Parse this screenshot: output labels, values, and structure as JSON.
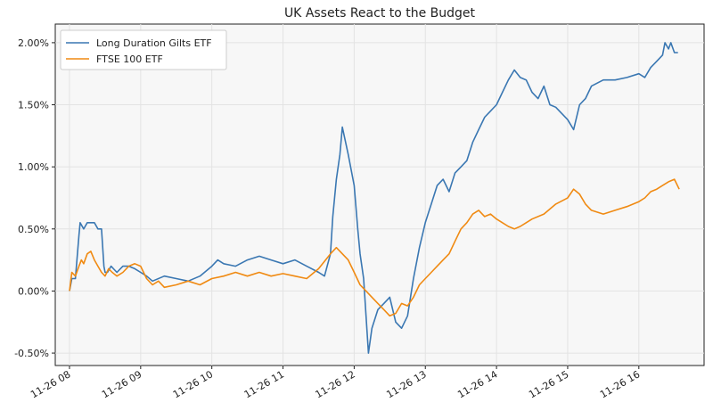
{
  "chart_data": {
    "type": "line",
    "title": "UK Assets React to the Budget",
    "xlabel": "",
    "ylabel": "",
    "x_ticks": [
      "11-26 08",
      "11-26 09",
      "11-26 10",
      "11-26 11",
      "11-26 12",
      "11-26 13",
      "11-26 14",
      "11-26 15",
      "11-26 16"
    ],
    "y_ticks": [
      "-0.50%",
      "0.00%",
      "0.50%",
      "1.00%",
      "1.50%",
      "2.00%"
    ],
    "ylim": [
      -0.6,
      2.15
    ],
    "xlim": [
      "11-26 07:48",
      "11-26 16:55"
    ],
    "grid": true,
    "legend_position": "top-left",
    "background_color": "#f7f7f7",
    "series": [
      {
        "name": "Long Duration Gilts ETF",
        "color": "#3a77b2",
        "x": [
          "08:00",
          "08:02",
          "08:05",
          "08:08",
          "08:09",
          "08:12",
          "08:15",
          "08:18",
          "08:21",
          "08:24",
          "08:27",
          "08:29",
          "08:30",
          "08:32",
          "08:35",
          "08:40",
          "08:45",
          "08:50",
          "08:55",
          "09:00",
          "09:05",
          "09:10",
          "09:20",
          "09:30",
          "09:40",
          "09:50",
          "10:00",
          "10:05",
          "10:10",
          "10:20",
          "10:30",
          "10:40",
          "10:50",
          "11:00",
          "11:10",
          "11:20",
          "11:30",
          "11:35",
          "11:40",
          "11:42",
          "11:45",
          "11:48",
          "11:50",
          "11:55",
          "12:00",
          "12:03",
          "12:05",
          "12:08",
          "12:10",
          "12:12",
          "12:15",
          "12:20",
          "12:25",
          "12:30",
          "12:35",
          "12:40",
          "12:45",
          "12:50",
          "12:55",
          "13:00",
          "13:05",
          "13:10",
          "13:15",
          "13:20",
          "13:25",
          "13:30",
          "13:35",
          "13:40",
          "13:45",
          "13:50",
          "14:00",
          "14:05",
          "14:10",
          "14:15",
          "14:20",
          "14:25",
          "14:30",
          "14:35",
          "14:40",
          "14:45",
          "14:50",
          "15:00",
          "15:05",
          "15:10",
          "15:15",
          "15:20",
          "15:30",
          "15:40",
          "15:50",
          "16:00",
          "16:05",
          "16:10",
          "16:15",
          "16:20",
          "16:22",
          "16:25",
          "16:27",
          "16:30",
          "16:33"
        ],
        "values": [
          0.0,
          0.1,
          0.1,
          0.45,
          0.55,
          0.5,
          0.55,
          0.55,
          0.55,
          0.5,
          0.5,
          0.2,
          0.15,
          0.15,
          0.2,
          0.15,
          0.2,
          0.2,
          0.18,
          0.15,
          0.12,
          0.08,
          0.12,
          0.1,
          0.08,
          0.12,
          0.2,
          0.25,
          0.22,
          0.2,
          0.25,
          0.28,
          0.25,
          0.22,
          0.25,
          0.2,
          0.15,
          0.12,
          0.3,
          0.6,
          0.9,
          1.1,
          1.32,
          1.1,
          0.85,
          0.5,
          0.3,
          0.1,
          -0.2,
          -0.5,
          -0.3,
          -0.15,
          -0.1,
          -0.05,
          -0.25,
          -0.3,
          -0.2,
          0.1,
          0.35,
          0.55,
          0.7,
          0.85,
          0.9,
          0.8,
          0.95,
          1.0,
          1.05,
          1.2,
          1.3,
          1.4,
          1.5,
          1.6,
          1.7,
          1.78,
          1.72,
          1.7,
          1.6,
          1.55,
          1.65,
          1.5,
          1.48,
          1.38,
          1.3,
          1.5,
          1.55,
          1.65,
          1.7,
          1.7,
          1.72,
          1.75,
          1.72,
          1.8,
          1.85,
          1.9,
          2.0,
          1.95,
          2.0,
          1.92,
          1.92
        ]
      },
      {
        "name": "FTSE 100 ETF",
        "color": "#f08a12",
        "x": [
          "08:00",
          "08:02",
          "08:05",
          "08:08",
          "08:10",
          "08:12",
          "08:15",
          "08:18",
          "08:21",
          "08:24",
          "08:27",
          "08:30",
          "08:33",
          "08:36",
          "08:40",
          "08:45",
          "08:50",
          "08:55",
          "09:00",
          "09:05",
          "09:10",
          "09:15",
          "09:20",
          "09:30",
          "09:40",
          "09:50",
          "10:00",
          "10:10",
          "10:20",
          "10:30",
          "10:40",
          "10:50",
          "11:00",
          "11:10",
          "11:20",
          "11:30",
          "11:40",
          "11:45",
          "11:50",
          "11:55",
          "12:00",
          "12:05",
          "12:10",
          "12:15",
          "12:20",
          "12:25",
          "12:30",
          "12:35",
          "12:40",
          "12:45",
          "12:50",
          "12:55",
          "13:00",
          "13:05",
          "13:10",
          "13:15",
          "13:20",
          "13:25",
          "13:30",
          "13:35",
          "13:40",
          "13:45",
          "13:50",
          "13:55",
          "14:00",
          "14:05",
          "14:10",
          "14:15",
          "14:20",
          "14:25",
          "14:30",
          "14:40",
          "14:50",
          "15:00",
          "15:05",
          "15:10",
          "15:15",
          "15:20",
          "15:30",
          "15:40",
          "15:50",
          "16:00",
          "16:05",
          "16:10",
          "16:15",
          "16:20",
          "16:25",
          "16:30",
          "16:34"
        ],
        "values": [
          0.0,
          0.15,
          0.12,
          0.2,
          0.25,
          0.22,
          0.3,
          0.32,
          0.25,
          0.2,
          0.15,
          0.12,
          0.18,
          0.15,
          0.12,
          0.15,
          0.2,
          0.22,
          0.2,
          0.1,
          0.05,
          0.08,
          0.03,
          0.05,
          0.08,
          0.05,
          0.1,
          0.12,
          0.15,
          0.12,
          0.15,
          0.12,
          0.14,
          0.12,
          0.1,
          0.18,
          0.3,
          0.35,
          0.3,
          0.25,
          0.15,
          0.05,
          0.0,
          -0.05,
          -0.1,
          -0.15,
          -0.2,
          -0.18,
          -0.1,
          -0.12,
          -0.05,
          0.05,
          0.1,
          0.15,
          0.2,
          0.25,
          0.3,
          0.4,
          0.5,
          0.55,
          0.62,
          0.65,
          0.6,
          0.62,
          0.58,
          0.55,
          0.52,
          0.5,
          0.52,
          0.55,
          0.58,
          0.62,
          0.7,
          0.75,
          0.82,
          0.78,
          0.7,
          0.65,
          0.62,
          0.65,
          0.68,
          0.72,
          0.75,
          0.8,
          0.82,
          0.85,
          0.88,
          0.9,
          0.82
        ]
      }
    ]
  }
}
